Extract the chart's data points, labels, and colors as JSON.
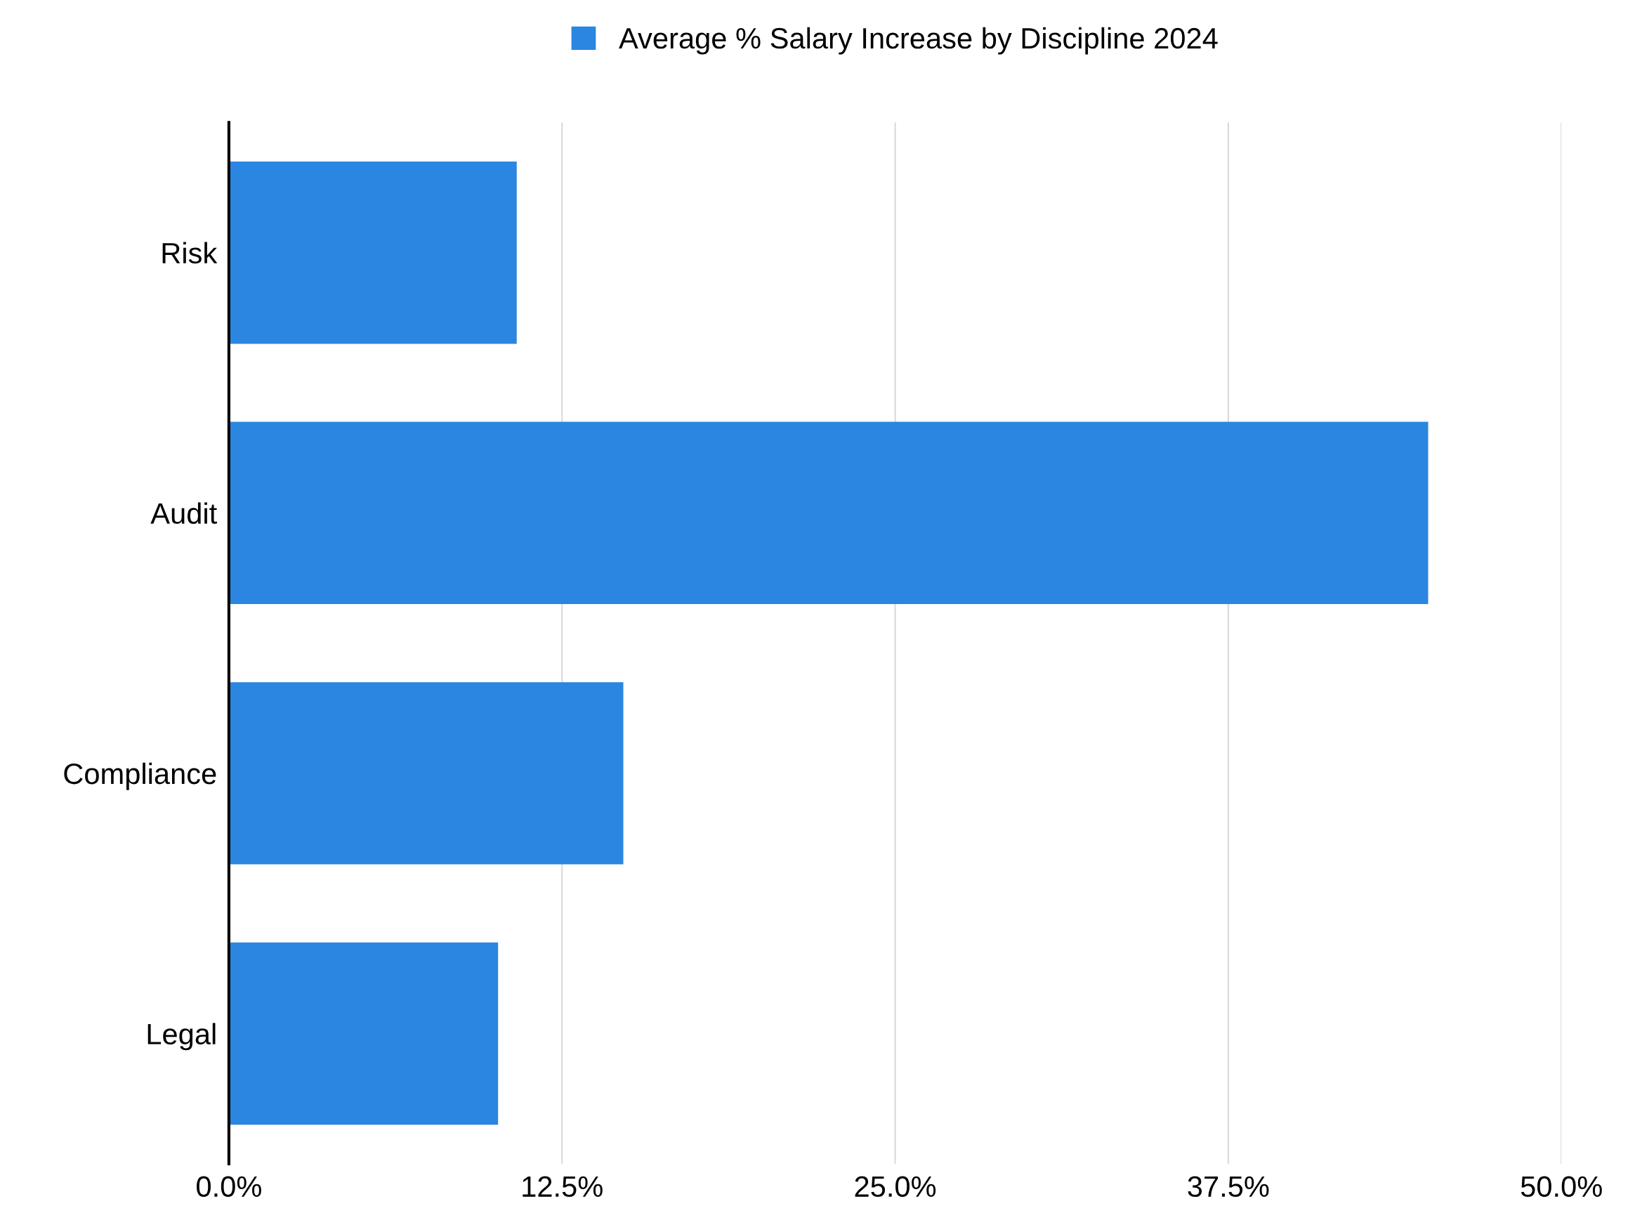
{
  "chart_data": {
    "type": "bar",
    "orientation": "horizontal",
    "categories": [
      "Risk",
      "Audit",
      "Compliance",
      "Legal"
    ],
    "series": [
      {
        "name": "Average % Salary Increase by Discipline 2024",
        "color": "#2a86e0",
        "values": [
          10.8,
          45.0,
          14.8,
          10.1
        ]
      }
    ],
    "xlim": [
      0,
      50
    ],
    "xticks": [
      {
        "value": 0,
        "label": "0.0%"
      },
      {
        "value": 12.5,
        "label": "12.5%"
      },
      {
        "value": 25,
        "label": "25.0%"
      },
      {
        "value": 37.5,
        "label": "37.5%"
      },
      {
        "value": 50,
        "label": "50.0%"
      }
    ],
    "grid": "x",
    "legend": "top"
  }
}
